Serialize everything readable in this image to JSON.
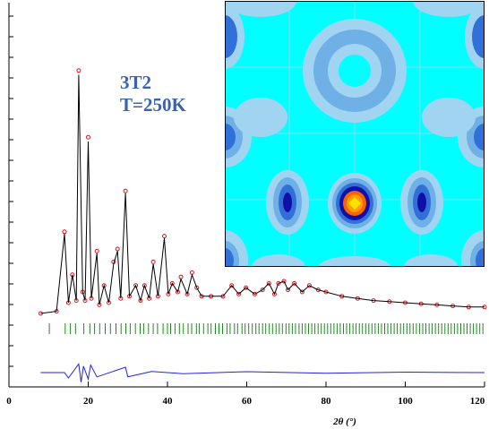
{
  "chart_data": {
    "type": "line",
    "xlabel": "2θ (°)",
    "xlim": [
      0,
      120
    ],
    "x_ticks": [
      "0",
      "20",
      "40",
      "60",
      "80",
      "100",
      "120"
    ],
    "annotations": [
      "3T2",
      "T=250K"
    ],
    "colors": {
      "observed": "#e0141c",
      "calculated": "#000000",
      "bragg_ticks": "#1f8a1f",
      "difference": "#2323d8",
      "annotation": "#3a62b0"
    },
    "series": [
      {
        "name": "",
        "role": "observed",
        "x": [
          8,
          12,
          14,
          15,
          16,
          17,
          17.6,
          18.6,
          19.2,
          20.0,
          20.8,
          22.2,
          22.8,
          24,
          25.2,
          26.4,
          27.4,
          28.2,
          29.4,
          30.4,
          32.0,
          33.2,
          34.2,
          35.4,
          36.4,
          37.6,
          39.2,
          40.2,
          41.2,
          42.6,
          43.4,
          45.0,
          46.2,
          47.4,
          48.6,
          51,
          54,
          56.2,
          58,
          59.8,
          62,
          64,
          65.6,
          67,
          68.0,
          69.4,
          70.4,
          72,
          74,
          75.8,
          78,
          80,
          84,
          88,
          92,
          96,
          100,
          104,
          108,
          112,
          116,
          120
        ],
        "intensity": [
          1.0,
          1.1,
          4.8,
          1.5,
          2.8,
          1.6,
          12.3,
          2.0,
          1.6,
          9.2,
          1.7,
          3.9,
          1.4,
          2.3,
          1.5,
          3.4,
          4.0,
          1.7,
          6.7,
          1.8,
          2.3,
          1.6,
          2.3,
          1.7,
          3.4,
          1.8,
          4.6,
          1.9,
          2.4,
          2.0,
          2.7,
          1.9,
          2.9,
          2.2,
          1.8,
          1.8,
          1.8,
          2.3,
          1.9,
          2.2,
          1.9,
          2.1,
          2.4,
          1.9,
          2.4,
          2.5,
          2.1,
          2.4,
          2.0,
          2.3,
          2.1,
          2.0,
          1.8,
          1.7,
          1.6,
          1.55,
          1.5,
          1.45,
          1.4,
          1.35,
          1.3,
          1.3
        ]
      },
      {
        "name": "",
        "role": "calculated",
        "x": [
          8,
          12,
          14,
          15,
          16,
          17,
          17.6,
          18.6,
          19.2,
          20.0,
          20.8,
          22.2,
          22.8,
          24,
          25.2,
          26.4,
          27.4,
          28.2,
          29.4,
          30.4,
          32.0,
          33.2,
          34.2,
          35.4,
          36.4,
          37.6,
          39.2,
          40.2,
          41.2,
          42.6,
          43.4,
          45.0,
          46.2,
          47.4,
          48.6,
          51,
          54,
          56.2,
          58,
          59.8,
          62,
          64,
          65.6,
          67,
          68.0,
          69.4,
          70.4,
          72,
          74,
          75.8,
          78,
          80,
          84,
          88,
          92,
          96,
          100,
          104,
          108,
          112,
          116,
          120
        ],
        "intensity": [
          1.0,
          1.1,
          4.7,
          1.5,
          2.8,
          1.6,
          12.1,
          2.0,
          1.6,
          9.0,
          1.7,
          3.8,
          1.4,
          2.3,
          1.5,
          3.3,
          3.9,
          1.7,
          6.6,
          1.8,
          2.3,
          1.6,
          2.3,
          1.7,
          3.3,
          1.8,
          4.5,
          1.9,
          2.4,
          2.0,
          2.6,
          1.9,
          2.8,
          2.2,
          1.8,
          1.8,
          1.8,
          2.3,
          1.9,
          2.2,
          1.9,
          2.1,
          2.4,
          1.9,
          2.4,
          2.5,
          2.1,
          2.4,
          2.0,
          2.3,
          2.1,
          2.0,
          1.8,
          1.7,
          1.6,
          1.55,
          1.5,
          1.45,
          1.4,
          1.35,
          1.3,
          1.3
        ]
      }
    ],
    "bragg_ticks_2theta": [
      10.2,
      14.2,
      15.5,
      16.8,
      18.9,
      20.4,
      21.6,
      22.9,
      24.3,
      25.6,
      27.0,
      28.3,
      29.5,
      30.6,
      31.9,
      33.1,
      34.0,
      35.2,
      36.4,
      37.5,
      38.9,
      40.0,
      40.8,
      41.9,
      43.0,
      44.0,
      45.2,
      46.1,
      47.3,
      48.0,
      49.1,
      50.2,
      51.0,
      52.1,
      53.0,
      53.9,
      55.0,
      55.8,
      56.9,
      57.7,
      58.8,
      59.6,
      60.5,
      61.4,
      62.3,
      63.1,
      64.0,
      64.8,
      65.7,
      66.5,
      67.4,
      68.2,
      69.0,
      69.9,
      70.7,
      71.5,
      72.3,
      73.2,
      74.0,
      74.8,
      75.6,
      76.4,
      77.2,
      78.0,
      78.8,
      79.6,
      80.4,
      81.2,
      82.0,
      82.8,
      83.6,
      84.4,
      85.2,
      86.0,
      86.8,
      87.6,
      88.4,
      89.2,
      90.0,
      90.8,
      91.6,
      92.4,
      93.2,
      94.0,
      94.8,
      95.6,
      96.4,
      97.2,
      98.0,
      98.8,
      99.6,
      100.4,
      101.2,
      102.0,
      102.8,
      103.6,
      104.4,
      105.2,
      106.0,
      106.8,
      107.6,
      108.4,
      109.2,
      110.0,
      110.8,
      111.6,
      112.4,
      113.2,
      114.0,
      114.8,
      115.6,
      116.4,
      117.2,
      118.0,
      118.8,
      119.6
    ],
    "difference": {
      "x": [
        8,
        14,
        15,
        17.6,
        18.2,
        18.8,
        20.0,
        20.6,
        22.2,
        29.4,
        30.0,
        36,
        44,
        60,
        80,
        100,
        120
      ],
      "values": [
        0,
        0,
        -0.25,
        0.4,
        -0.45,
        0.3,
        -0.3,
        0.35,
        -0.2,
        0.25,
        -0.2,
        0.05,
        -0.05,
        0.04,
        -0.03,
        0.02,
        0
      ]
    },
    "inset_map": {
      "type": "heatmap",
      "levels_colors": [
        "#00ffff",
        "#a0d4f0",
        "#6fb0e6",
        "#3070d8",
        "#1010a8",
        "#ffe000",
        "#ff6000"
      ]
    }
  }
}
